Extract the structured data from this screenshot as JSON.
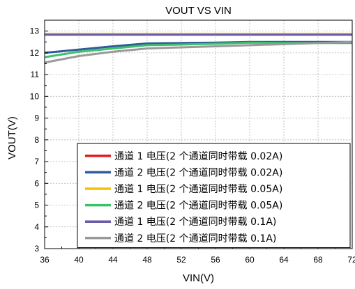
{
  "chart_data": {
    "type": "line",
    "title": "VOUT VS VIN",
    "xlabel": "VIN(V)",
    "ylabel": "VOUT(V)",
    "xlim": [
      36,
      72
    ],
    "ylim": [
      3,
      13.5
    ],
    "xticks": [
      36,
      40,
      44,
      48,
      52,
      56,
      60,
      64,
      68,
      72
    ],
    "yticks": [
      3,
      4,
      5,
      6,
      7,
      8,
      9,
      10,
      11,
      12,
      13
    ],
    "grid": true,
    "legend_position": "bottom-right",
    "series": [
      {
        "name": "通道 1 电压(2 个通道同时带载 0.02A)",
        "color": "#e31a1c",
        "x": [
          36,
          40,
          44,
          48,
          52,
          56,
          60,
          64,
          68,
          72
        ],
        "y": [
          12.85,
          12.85,
          12.85,
          12.85,
          12.85,
          12.85,
          12.85,
          12.85,
          12.85,
          12.85
        ]
      },
      {
        "name": "通道 2 电压(2 个通道同时带载 0.02A)",
        "color": "#2f5b9a",
        "x": [
          36,
          40,
          44,
          48,
          52,
          56,
          60,
          64,
          68,
          72
        ],
        "y": [
          12.0,
          12.15,
          12.3,
          12.43,
          12.45,
          12.47,
          12.5,
          12.5,
          12.5,
          12.5
        ]
      },
      {
        "name": "通道 1 电压(2 个通道同时带载 0.05A)",
        "color": "#f5c000",
        "x": [
          36,
          40,
          44,
          48,
          52,
          56,
          60,
          64,
          68,
          72
        ],
        "y": [
          12.87,
          12.87,
          12.87,
          12.87,
          12.87,
          12.87,
          12.87,
          12.87,
          12.87,
          12.87
        ]
      },
      {
        "name": "通道 2 电压(2 个通道同时带载 0.05A)",
        "color": "#3cc06a",
        "x": [
          36,
          40,
          44,
          48,
          52,
          56,
          60,
          64,
          68,
          72
        ],
        "y": [
          11.8,
          12.05,
          12.2,
          12.35,
          12.38,
          12.42,
          12.47,
          12.45,
          12.45,
          12.45
        ]
      },
      {
        "name": "通道 1 电压(2 个通道同时带载 0.1A)",
        "color": "#6b5ba8",
        "x": [
          36,
          40,
          44,
          48,
          52,
          56,
          60,
          64,
          68,
          72
        ],
        "y": [
          12.83,
          12.83,
          12.83,
          12.83,
          12.83,
          12.83,
          12.83,
          12.83,
          12.83,
          12.83
        ]
      },
      {
        "name": "通道 2 电压(2 个通道同时带载 0.1A)",
        "color": "#999999",
        "x": [
          36,
          40,
          44,
          48,
          52,
          56,
          60,
          64,
          68,
          72
        ],
        "y": [
          11.55,
          11.85,
          12.05,
          12.2,
          12.25,
          12.3,
          12.35,
          12.4,
          12.45,
          12.5
        ]
      }
    ]
  }
}
